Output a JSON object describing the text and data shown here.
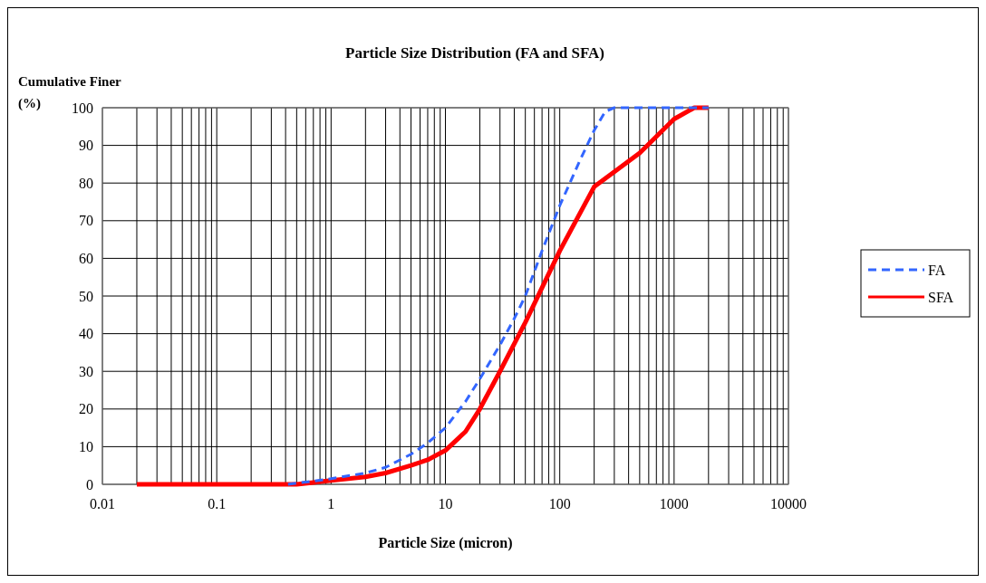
{
  "chart_data": {
    "type": "line",
    "title": "Particle Size Distribution (FA and SFA)",
    "xlabel": "Particle Size (micron)",
    "ylabel": "Cumulative Finer (%)",
    "log": "x",
    "grid": true,
    "legend": "right",
    "xlim": [
      0.01,
      10000
    ],
    "ylim": [
      0,
      100
    ],
    "yticks": [
      0,
      10,
      20,
      30,
      40,
      50,
      60,
      70,
      80,
      90,
      100
    ],
    "xticks": [
      0.01,
      {
        "value": 0.02,
        "label": null
      },
      {
        "value": 0.03,
        "label": null
      },
      {
        "value": 0.04,
        "label": null
      },
      {
        "value": 0.05,
        "label": null
      },
      {
        "value": 0.06,
        "label": null
      },
      {
        "value": 0.07,
        "label": null
      },
      {
        "value": 0.08,
        "label": null
      },
      {
        "value": 0.09,
        "label": null
      },
      0.1,
      {
        "value": 0.2,
        "label": null
      },
      {
        "value": 0.3,
        "label": null
      },
      {
        "value": 0.4,
        "label": null
      },
      {
        "value": 0.5,
        "label": null
      },
      {
        "value": 0.6,
        "label": null
      },
      {
        "value": 0.7,
        "label": null
      },
      {
        "value": 0.8,
        "label": null
      },
      {
        "value": 0.9,
        "label": null
      },
      1,
      {
        "value": 2,
        "label": null
      },
      {
        "value": 3,
        "label": null
      },
      {
        "value": 4,
        "label": null
      },
      {
        "value": 5,
        "label": null
      },
      {
        "value": 6,
        "label": null
      },
      {
        "value": 7,
        "label": null
      },
      {
        "value": 8,
        "label": null
      },
      {
        "value": 9,
        "label": null
      },
      10,
      {
        "value": 20,
        "label": null
      },
      {
        "value": 30,
        "label": null
      },
      {
        "value": 40,
        "label": null
      },
      {
        "value": 50,
        "label": null
      },
      {
        "value": 60,
        "label": null
      },
      {
        "value": 70,
        "label": null
      },
      {
        "value": 80,
        "label": null
      },
      {
        "value": 90,
        "label": null
      },
      100,
      {
        "value": 200,
        "label": null
      },
      {
        "value": 300,
        "label": null
      },
      {
        "value": 400,
        "label": null
      },
      {
        "value": 500,
        "label": null
      },
      {
        "value": 600,
        "label": null
      },
      {
        "value": 700,
        "label": null
      },
      {
        "value": 800,
        "label": null
      },
      {
        "value": 900,
        "label": null
      },
      1000,
      {
        "value": 2000,
        "label": null
      },
      {
        "value": 3000,
        "label": null
      },
      {
        "value": 4000,
        "label": null
      },
      {
        "value": 5000,
        "label": null
      },
      {
        "value": 6000,
        "label": null
      },
      {
        "value": 7000,
        "label": null
      },
      {
        "value": 8000,
        "label": null
      },
      {
        "value": 9000,
        "label": null
      },
      10000
    ],
    "series": [
      {
        "name": "FA",
        "color": "#3366ff",
        "line_style": "dashed",
        "x": [
          0.42,
          0.6,
          1,
          2,
          3,
          5,
          7,
          10,
          15,
          20,
          30,
          40,
          50,
          70,
          100,
          150,
          200,
          250,
          300,
          2000
        ],
        "values": [
          0,
          0.6,
          1.5,
          3,
          4.5,
          8,
          11,
          15,
          22,
          28,
          37,
          44,
          50,
          62,
          74,
          86,
          94,
          99,
          100,
          100
        ]
      },
      {
        "name": "SFA",
        "color": "#ff0000",
        "line_style": "solid",
        "x": [
          0.02,
          0.5,
          0.7,
          1,
          2,
          3,
          5,
          7,
          10,
          15,
          20,
          30,
          50,
          100,
          200,
          500,
          1000,
          1500,
          2000
        ],
        "values": [
          0,
          0,
          0.5,
          1,
          2,
          3,
          5,
          6.5,
          9,
          14,
          20,
          30,
          43,
          62,
          79,
          88,
          97,
          100,
          100
        ]
      }
    ]
  }
}
